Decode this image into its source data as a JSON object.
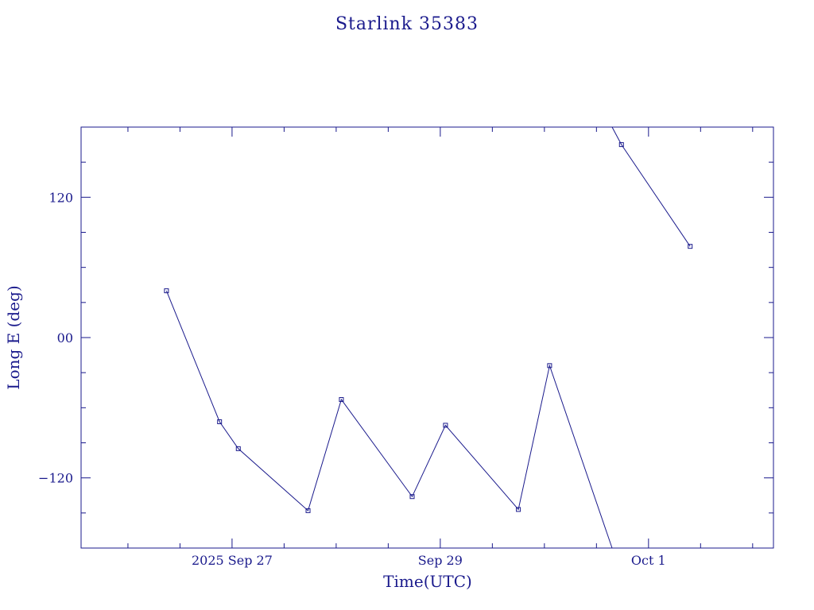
{
  "colors": {
    "plot": "#1a1a8c",
    "background": "#ffffff"
  },
  "chart_data": {
    "type": "line",
    "title": "Starlink 35383",
    "xlabel": "Time(UTC)",
    "ylabel": "Long E (deg)",
    "x_ticks": [
      {
        "label": "2025 Sep 27",
        "day": 27.0
      },
      {
        "label": "Sep 29",
        "day": 29.0
      },
      {
        "label": "Oct  1",
        "day": 31.0
      }
    ],
    "y_ticks": [
      {
        "label": "120",
        "value": 120
      },
      {
        "label": "00",
        "value": 0
      },
      {
        "label": "−120",
        "value": -120
      }
    ],
    "xlim_days": [
      25.55,
      32.2
    ],
    "ylim": [
      -180,
      180
    ],
    "x_unit": "days of Sep 2025 (UTC)",
    "grid": false,
    "segments": [
      {
        "points": [
          [
            26.37,
            40
          ],
          [
            26.88,
            -72
          ],
          [
            27.06,
            -95
          ],
          [
            27.73,
            -148
          ],
          [
            28.05,
            -53
          ],
          [
            28.73,
            -136
          ],
          [
            29.05,
            -75
          ],
          [
            29.75,
            -147
          ],
          [
            30.05,
            -24
          ],
          [
            30.65,
            -180
          ]
        ]
      },
      {
        "points": [
          [
            30.65,
            180
          ],
          [
            30.74,
            165
          ],
          [
            31.4,
            78
          ]
        ]
      }
    ],
    "markers": [
      [
        26.37,
        40
      ],
      [
        26.88,
        -72
      ],
      [
        27.06,
        -95
      ],
      [
        27.73,
        -148
      ],
      [
        28.05,
        -53
      ],
      [
        28.73,
        -136
      ],
      [
        29.05,
        -75
      ],
      [
        29.75,
        -147
      ],
      [
        30.05,
        -24
      ],
      [
        30.74,
        165
      ],
      [
        31.4,
        78
      ]
    ]
  }
}
